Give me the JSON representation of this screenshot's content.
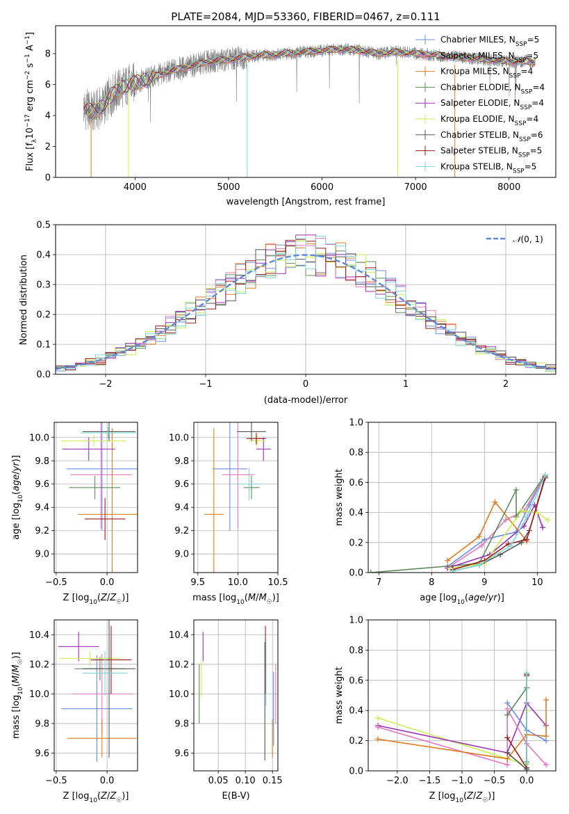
{
  "colors": {
    "Chabrier MILES": "#6a8be0",
    "Salpeter MILES": "#e577c0",
    "Kroupa MILES": "#e07b20",
    "Chabrier ELODIE": "#5b8a5b",
    "Salpeter ELODIE": "#9b2fb4",
    "Kroupa ELODIE": "#c9ef52",
    "Chabrier STELIB": "#555555",
    "Salpeter STELIB": "#9c1a1a",
    "Kroupa STELIB": "#7ed6d6"
  },
  "chart_data": [
    {
      "id": "spectrum",
      "type": "line",
      "title": "PLATE=2084, MJD=53360, FIBERID=0467, z=0.111",
      "xlabel": "wavelength [Angstrom, rest frame]",
      "ylabel": "Flux [f_λ 10^-17 erg cm^-2 s^-1 A^-1]",
      "xlim": [
        3150,
        8500
      ],
      "ylim": [
        0,
        9.8
      ],
      "xticks": [
        4000,
        5000,
        6000,
        7000,
        8000
      ],
      "yticks": [
        0,
        2,
        4,
        6,
        8
      ],
      "legend": "upper-right",
      "observed_color": "#808080",
      "observed_approx": {
        "x": [
          3450,
          3550,
          3650,
          3750,
          3850,
          3950,
          4050,
          4200,
          4400,
          4600,
          4800,
          5000,
          5200,
          5400,
          5600,
          5800,
          6000,
          6200,
          6400,
          6600,
          6800,
          7000,
          7200,
          7400,
          7600,
          7800,
          8000,
          8200,
          8280
        ],
        "y": [
          4.5,
          4.2,
          4.6,
          5.3,
          5.8,
          6.0,
          6.2,
          6.5,
          6.9,
          7.2,
          7.5,
          7.6,
          7.8,
          7.9,
          8.0,
          8.1,
          8.2,
          8.3,
          8.2,
          8.0,
          8.1,
          8.0,
          7.9,
          7.8,
          7.7,
          7.6,
          7.5,
          7.5,
          7.4
        ]
      },
      "series": [
        {
          "name": "Chabrier MILES, N_SSP=5",
          "key": "Chabrier MILES"
        },
        {
          "name": "Salpeter MILES, N_SSP=5",
          "key": "Salpeter MILES"
        },
        {
          "name": "Kroupa MILES, N_SSP=4",
          "key": "Kroupa MILES"
        },
        {
          "name": "Chabrier ELODIE, N_SSP=4",
          "key": "Chabrier ELODIE"
        },
        {
          "name": "Salpeter ELODIE, N_SSP=4",
          "key": "Salpeter ELODIE"
        },
        {
          "name": "Kroupa ELODIE, N_SSP=4",
          "key": "Kroupa ELODIE"
        },
        {
          "name": "Chabrier STELIB, N_SSP=6",
          "key": "Chabrier STELIB"
        },
        {
          "name": "Salpeter STELIB, N_SSP=5",
          "key": "Salpeter STELIB"
        },
        {
          "name": "Kroupa STELIB, N_SSP=5",
          "key": "Kroupa STELIB"
        }
      ],
      "legend_entries": [
        {
          "pre": "Chabrier MILES, N",
          "sub": "SSP",
          "post": "=5",
          "key": "Chabrier MILES"
        },
        {
          "pre": "Salpeter MILES, N",
          "sub": "SSP",
          "post": "=5",
          "key": "Salpeter MILES"
        },
        {
          "pre": "Kroupa MILES, N",
          "sub": "SSP",
          "post": "=4",
          "key": "Kroupa MILES"
        },
        {
          "pre": "Chabrier ELODIE, N",
          "sub": "SSP",
          "post": "=4",
          "key": "Chabrier ELODIE"
        },
        {
          "pre": "Salpeter ELODIE, N",
          "sub": "SSP",
          "post": "=4",
          "key": "Salpeter ELODIE"
        },
        {
          "pre": "Kroupa ELODIE, N",
          "sub": "SSP",
          "post": "=4",
          "key": "Kroupa ELODIE"
        },
        {
          "pre": "Chabrier STELIB, N",
          "sub": "SSP",
          "post": "=6",
          "key": "Chabrier STELIB"
        },
        {
          "pre": "Salpeter STELIB, N",
          "sub": "SSP",
          "post": "=5",
          "key": "Salpeter STELIB"
        },
        {
          "pre": "Kroupa STELIB, N",
          "sub": "SSP",
          "post": "=5",
          "key": "Kroupa STELIB"
        }
      ]
    },
    {
      "id": "residuals",
      "type": "line",
      "xlabel": "(data-model)/error",
      "ylabel": "Normed distribution",
      "xlim": [
        -2.5,
        2.5
      ],
      "ylim": [
        0,
        0.5
      ],
      "xticks": [
        -2,
        -1,
        0,
        1,
        2
      ],
      "yticks": [
        0.0,
        0.1,
        0.2,
        0.3,
        0.4,
        0.5
      ],
      "grid": true,
      "legend": "upper-right",
      "gaussian": {
        "label": "N(0,1)",
        "color": "#5b8ad6",
        "mean": 0,
        "sigma": 1
      },
      "bin_edges_start": -2.5,
      "bin_width": 0.1
    },
    {
      "id": "age_vs_Z",
      "type": "scatter",
      "xlabel": "Z [log10(Z/Z☉)]",
      "ylabel": "age [log10(age/yr)]",
      "xlim": [
        -0.52,
        0.3
      ],
      "ylim": [
        8.84,
        10.13
      ],
      "xticks": [
        -0.5,
        0.0
      ],
      "yticks": [
        9.0,
        9.2,
        9.4,
        9.6,
        9.8,
        10.0
      ],
      "grid": true,
      "points": [
        {
          "key": "Chabrier MILES",
          "x": -0.05,
          "xerr": 0.35,
          "y": 9.73,
          "yerr": 0.53
        },
        {
          "key": "Salpeter MILES",
          "x": -0.06,
          "xerr": 0.3,
          "y": 9.68,
          "yerr": 0.46
        },
        {
          "key": "Kroupa MILES",
          "x": 0.05,
          "xerr": 0.34,
          "y": 9.34,
          "yerr": 0.74
        },
        {
          "key": "Chabrier ELODIE",
          "x": -0.12,
          "xerr": 0.25,
          "y": 9.57,
          "yerr": 0.1
        },
        {
          "key": "Salpeter ELODIE",
          "x": -0.18,
          "xerr": 0.26,
          "y": 9.9,
          "yerr": 0.1
        },
        {
          "key": "Kroupa ELODIE",
          "x": -0.13,
          "xerr": 0.32,
          "y": 9.97,
          "yerr": 0.05
        },
        {
          "key": "Chabrier STELIB",
          "x": 0.02,
          "xerr": 0.26,
          "y": 10.05,
          "yerr": 0.08
        },
        {
          "key": "Salpeter STELIB",
          "x": -0.02,
          "xerr": 0.2,
          "y": 9.3,
          "yerr": 0.18
        },
        {
          "key": "Kroupa STELIB",
          "x": 0.01,
          "xerr": 0.27,
          "y": 10.04,
          "yerr": 0.05
        }
      ]
    },
    {
      "id": "age_vs_mass",
      "type": "scatter",
      "xlabel": "mass [log10(M/M☉)]",
      "ylabel": "",
      "xlim": [
        9.45,
        10.5
      ],
      "ylim": [
        8.84,
        10.13
      ],
      "xticks": [
        9.5,
        10.0,
        10.5
      ],
      "yticks": [
        9.0,
        9.2,
        9.4,
        9.6,
        9.8,
        10.0
      ],
      "grid": true,
      "points": [
        {
          "key": "Chabrier MILES",
          "x": 9.9,
          "xerr": 0.22,
          "y": 9.73,
          "yerr": 0.53
        },
        {
          "key": "Salpeter MILES",
          "x": 10.0,
          "xerr": 0.2,
          "y": 9.68,
          "yerr": 0.46
        },
        {
          "key": "Kroupa MILES",
          "x": 9.7,
          "xerr": 0.12,
          "y": 9.34,
          "yerr": 0.74
        },
        {
          "key": "Chabrier ELODIE",
          "x": 10.17,
          "xerr": 0.1,
          "y": 9.57,
          "yerr": 0.1
        },
        {
          "key": "Salpeter ELODIE",
          "x": 10.32,
          "xerr": 0.09,
          "y": 9.9,
          "yerr": 0.1
        },
        {
          "key": "Kroupa ELODIE",
          "x": 10.24,
          "xerr": 0.1,
          "y": 9.97,
          "yerr": 0.05
        },
        {
          "key": "Chabrier STELIB",
          "x": 10.17,
          "xerr": 0.18,
          "y": 10.05,
          "yerr": 0.08
        },
        {
          "key": "Salpeter STELIB",
          "x": 10.23,
          "xerr": 0.12,
          "y": 9.99,
          "yerr": 0.05
        },
        {
          "key": "Kroupa STELIB",
          "x": 10.14,
          "xerr": 0.16,
          "y": 9.6,
          "yerr": 0.14
        }
      ]
    },
    {
      "id": "weight_vs_age",
      "type": "line",
      "xlabel": "age [log10(age/yr)]",
      "ylabel": "mass weight",
      "xlim": [
        6.8,
        10.35
      ],
      "ylim": [
        0,
        1
      ],
      "xticks": [
        7,
        8,
        9,
        10
      ],
      "yticks": [
        0.0,
        0.2,
        0.4,
        0.6,
        0.8,
        1.0
      ],
      "grid": true,
      "series": [
        {
          "key": "Chabrier MILES",
          "x": [
            8.3,
            9.0,
            9.6,
            9.85,
            10.15
          ],
          "y": [
            0.04,
            0.22,
            0.27,
            0.45,
            0.65
          ]
        },
        {
          "key": "Salpeter MILES",
          "x": [
            8.3,
            8.95,
            9.4,
            9.75,
            10.1
          ],
          "y": [
            0.03,
            0.18,
            0.35,
            0.41,
            0.62
          ]
        },
        {
          "key": "Kroupa MILES",
          "x": [
            8.3,
            8.9,
            9.2,
            9.8
          ],
          "y": [
            0.08,
            0.24,
            0.47,
            0.21
          ]
        },
        {
          "key": "Chabrier ELODIE",
          "x": [
            6.85,
            8.9,
            9.6,
            9.6,
            10.15
          ],
          "y": [
            0.0,
            0.06,
            0.55,
            0.37,
            0.65
          ]
        },
        {
          "key": "Salpeter ELODIE",
          "x": [
            8.3,
            9.1,
            9.75,
            9.95,
            10.1
          ],
          "y": [
            0.03,
            0.12,
            0.31,
            0.45,
            0.3
          ]
        },
        {
          "key": "Kroupa ELODIE",
          "x": [
            8.35,
            9.0,
            9.7,
            10.0,
            10.2
          ],
          "y": [
            0.03,
            0.06,
            0.41,
            0.4,
            0.35
          ]
        },
        {
          "key": "Chabrier STELIB",
          "x": [
            8.4,
            8.9,
            9.3,
            9.7,
            9.85,
            10.15
          ],
          "y": [
            0.01,
            0.05,
            0.12,
            0.2,
            0.28,
            0.63
          ]
        },
        {
          "key": "Salpeter STELIB",
          "x": [
            8.4,
            9.0,
            9.45,
            9.8,
            10.15
          ],
          "y": [
            0.02,
            0.08,
            0.19,
            0.22,
            0.64
          ]
        },
        {
          "key": "Kroupa STELIB",
          "x": [
            8.4,
            8.9,
            9.5,
            9.8,
            10.15
          ],
          "y": [
            0.01,
            0.05,
            0.18,
            0.37,
            0.65
          ]
        }
      ]
    },
    {
      "id": "mass_vs_Z",
      "type": "scatter",
      "xlabel": "Z [log10(Z/Z☉)]",
      "ylabel": "mass [log10(M/M☉)]",
      "xlim": [
        -0.52,
        0.3
      ],
      "ylim": [
        9.48,
        10.5
      ],
      "xticks": [
        -0.5,
        0.0
      ],
      "yticks": [
        9.6,
        9.8,
        10.0,
        10.2,
        10.4
      ],
      "grid": true,
      "points": [
        {
          "key": "Chabrier MILES",
          "x": -0.1,
          "xerr": 0.35,
          "y": 9.9,
          "yerr": 0.36
        },
        {
          "key": "Salpeter MILES",
          "x": -0.05,
          "xerr": 0.3,
          "y": 10.0,
          "yerr": 0.27
        },
        {
          "key": "Kroupa MILES",
          "x": -0.05,
          "xerr": 0.34,
          "y": 9.7,
          "yerr": 0.13
        },
        {
          "key": "Chabrier ELODIE",
          "x": -0.07,
          "xerr": 0.25,
          "y": 10.17,
          "yerr": 0.08
        },
        {
          "key": "Salpeter ELODIE",
          "x": -0.28,
          "xerr": 0.2,
          "y": 10.32,
          "yerr": 0.1
        },
        {
          "key": "Kroupa ELODIE",
          "x": -0.17,
          "xerr": 0.3,
          "y": 10.24,
          "yerr": 0.05
        },
        {
          "key": "Chabrier STELIB",
          "x": 0.02,
          "xerr": 0.26,
          "y": 10.17,
          "yerr": 0.6
        },
        {
          "key": "Salpeter STELIB",
          "x": 0.04,
          "xerr": 0.2,
          "y": 10.23,
          "yerr": 0.23
        },
        {
          "key": "Kroupa STELIB",
          "x": -0.02,
          "xerr": 0.22,
          "y": 10.14,
          "yerr": 0.15
        }
      ]
    },
    {
      "id": "mass_vs_ebv",
      "type": "scatter",
      "xlabel": "E(B-V)",
      "ylabel": "",
      "xlim": [
        0.005,
        0.16
      ],
      "ylim": [
        9.48,
        10.5
      ],
      "xticks": [
        0.05,
        0.1,
        0.15
      ],
      "yticks": [
        9.6,
        9.8,
        10.0,
        10.2,
        10.4
      ],
      "grid": true,
      "points": [
        {
          "key": "Chabrier MILES",
          "x": 0.152,
          "y": 9.9,
          "yerr": 0.25
        },
        {
          "key": "Salpeter MILES",
          "x": 0.156,
          "y": 10.0,
          "yerr": 0.2
        },
        {
          "key": "Kroupa MILES",
          "x": 0.15,
          "y": 9.7,
          "yerr": 0.13
        },
        {
          "key": "Chabrier ELODIE",
          "x": 0.015,
          "y": 10.0,
          "yerr": 0.2
        },
        {
          "key": "Salpeter ELODIE",
          "x": 0.022,
          "y": 10.32,
          "yerr": 0.1
        },
        {
          "key": "Kroupa ELODIE",
          "x": 0.019,
          "y": 10.1,
          "yerr": 0.12
        },
        {
          "key": "Chabrier STELIB",
          "x": 0.136,
          "y": 9.95,
          "yerr": 0.4
        },
        {
          "key": "Salpeter STELIB",
          "x": 0.137,
          "y": 10.23,
          "yerr": 0.23
        },
        {
          "key": "Kroupa STELIB",
          "x": 0.138,
          "y": 10.14,
          "yerr": 0.22
        }
      ]
    },
    {
      "id": "weight_vs_Z",
      "type": "line",
      "xlabel": "Z [log10(Z/Z☉)]",
      "ylabel": "mass weight",
      "xlim": [
        -2.45,
        0.45
      ],
      "ylim": [
        0,
        1
      ],
      "xticks": [
        -2.0,
        -1.5,
        -1.0,
        -0.5,
        0.0
      ],
      "yticks": [
        0.0,
        0.2,
        0.4,
        0.6,
        0.8,
        1.0
      ],
      "grid": true,
      "series": [
        {
          "key": "Kroupa ELODIE",
          "x": [
            -2.3,
            0.0,
            0.0
          ],
          "y": [
            0.35,
            0.04,
            0.4
          ]
        },
        {
          "key": "Salpeter ELODIE",
          "x": [
            -2.3,
            -0.3,
            0.0,
            0.3
          ],
          "y": [
            0.3,
            0.12,
            0.45,
            0.3
          ]
        },
        {
          "key": "Salpeter MILES",
          "x": [
            -2.3,
            -0.3,
            -0.3,
            0.0,
            0.3
          ],
          "y": [
            0.29,
            0.04,
            0.41,
            0.18,
            0.04
          ]
        },
        {
          "key": "Kroupa MILES",
          "x": [
            -2.3,
            -0.3,
            0.0,
            0.3,
            0.3
          ],
          "y": [
            0.21,
            0.08,
            0.24,
            0.23,
            0.47
          ]
        },
        {
          "key": "Chabrier MILES",
          "x": [
            -0.3,
            0.0,
            0.3
          ],
          "y": [
            0.45,
            0.27,
            0.2
          ]
        },
        {
          "key": "Chabrier ELODIE",
          "x": [
            -0.3,
            0.0,
            0.0
          ],
          "y": [
            0.37,
            0.55,
            0.06
          ]
        },
        {
          "key": "Salpeter STELIB",
          "x": [
            -0.3,
            0.0,
            0.0
          ],
          "y": [
            0.22,
            0.02,
            0.64
          ]
        },
        {
          "key": "Chabrier STELIB",
          "x": [
            -0.3,
            0.0,
            0.0
          ],
          "y": [
            0.12,
            0.01,
            0.63
          ]
        },
        {
          "key": "Kroupa STELIB",
          "x": [
            0.0,
            0.0
          ],
          "y": [
            0.65,
            0.05
          ]
        }
      ]
    }
  ]
}
